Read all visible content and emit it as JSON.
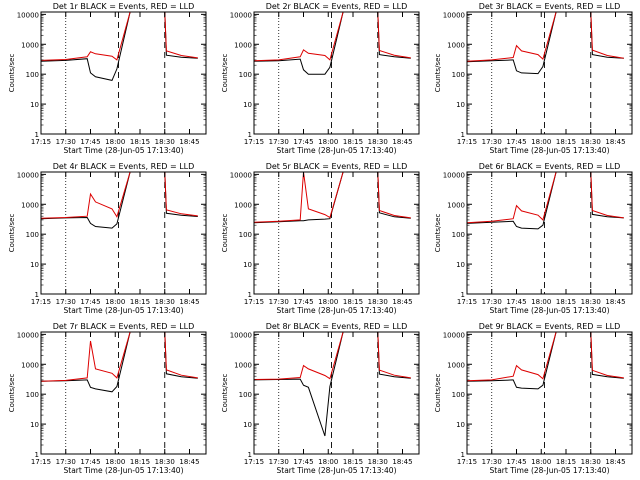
{
  "chart_data": [
    {
      "type": "line",
      "title": "Det 1r BLACK = Events, RED = LLD",
      "xlabel": "",
      "ylabel": "Counts/sec",
      "x": [
        "17:15",
        "17:30",
        "17:43",
        "17:45",
        "17:48",
        "17:58",
        "18:01",
        "18:09",
        "18:30",
        "18:31",
        "18:40",
        "18:50"
      ],
      "series": [
        {
          "color": "#000000",
          "values": [
            270,
            290,
            330,
            110,
            82,
            62,
            150,
            12000,
            12000,
            430,
            370,
            340
          ]
        },
        {
          "color": "#dd0000",
          "values": [
            290,
            310,
            380,
            560,
            480,
            400,
            300,
            12000,
            12000,
            600,
            420,
            350
          ]
        }
      ]
    },
    {
      "type": "line",
      "title": "Det 2r BLACK = Events, RED = LLD",
      "xlabel": "",
      "ylabel": "Counts/sec",
      "x": [
        "17:15",
        "17:30",
        "17:43",
        "17:45",
        "17:48",
        "17:58",
        "18:01",
        "18:09",
        "18:30",
        "18:31",
        "18:40",
        "18:50"
      ],
      "series": [
        {
          "color": "#000000",
          "values": [
            270,
            280,
            320,
            140,
            100,
            100,
            170,
            12000,
            12000,
            450,
            380,
            340
          ]
        },
        {
          "color": "#dd0000",
          "values": [
            280,
            300,
            380,
            650,
            500,
            420,
            300,
            12000,
            12000,
            620,
            430,
            350
          ]
        }
      ]
    },
    {
      "type": "line",
      "title": "Det 3r BLACK = Events, RED = LLD",
      "xlabel": "",
      "ylabel": "Counts/sec",
      "x": [
        "17:15",
        "17:30",
        "17:43",
        "17:45",
        "17:48",
        "17:58",
        "18:01",
        "18:09",
        "18:30",
        "18:31",
        "18:40",
        "18:50"
      ],
      "series": [
        {
          "color": "#000000",
          "values": [
            260,
            280,
            300,
            130,
            110,
            105,
            180,
            12000,
            12000,
            450,
            370,
            340
          ]
        },
        {
          "color": "#dd0000",
          "values": [
            270,
            300,
            360,
            900,
            600,
            450,
            320,
            12000,
            12000,
            640,
            420,
            340
          ]
        }
      ]
    },
    {
      "type": "line",
      "title": "Det 4r BLACK = Events, RED = LLD",
      "xlabel": "",
      "ylabel": "Counts/sec",
      "x": [
        "17:15",
        "17:30",
        "17:43",
        "17:45",
        "17:48",
        "17:58",
        "18:01",
        "18:09",
        "18:30",
        "18:31",
        "18:40",
        "18:50"
      ],
      "series": [
        {
          "color": "#000000",
          "values": [
            330,
            350,
            360,
            230,
            180,
            160,
            220,
            12000,
            12000,
            500,
            430,
            390
          ]
        },
        {
          "color": "#dd0000",
          "values": [
            340,
            360,
            400,
            2200,
            1200,
            700,
            380,
            12000,
            12000,
            650,
            480,
            410
          ]
        }
      ]
    },
    {
      "type": "line",
      "title": "Det 5r BLACK = Events, RED = LLD",
      "xlabel": "",
      "ylabel": "Counts/sec",
      "x": [
        "17:15",
        "17:30",
        "17:43",
        "17:45",
        "17:48",
        "17:58",
        "18:01",
        "18:09",
        "18:30",
        "18:31",
        "18:40",
        "18:50"
      ],
      "series": [
        {
          "color": "#000000",
          "values": [
            240,
            260,
            280,
            280,
            300,
            320,
            330,
            12000,
            12000,
            520,
            380,
            340
          ]
        },
        {
          "color": "#dd0000",
          "values": [
            250,
            270,
            300,
            12000,
            700,
            450,
            360,
            12000,
            12000,
            620,
            420,
            350
          ]
        }
      ]
    },
    {
      "type": "line",
      "title": "Det 6r BLACK = Events, RED = LLD",
      "xlabel": "",
      "ylabel": "Counts/sec",
      "x": [
        "17:15",
        "17:30",
        "17:43",
        "17:45",
        "17:48",
        "17:58",
        "18:01",
        "18:09",
        "18:30",
        "18:31",
        "18:40",
        "18:50"
      ],
      "series": [
        {
          "color": "#000000",
          "values": [
            230,
            250,
            270,
            180,
            160,
            150,
            200,
            12000,
            12000,
            460,
            380,
            350
          ]
        },
        {
          "color": "#dd0000",
          "values": [
            240,
            270,
            330,
            900,
            600,
            430,
            300,
            12000,
            12000,
            620,
            420,
            350
          ]
        }
      ]
    },
    {
      "type": "line",
      "title": "Det 7r BLACK = Events, RED = LLD",
      "xlabel": "",
      "ylabel": "Counts/sec",
      "x": [
        "17:15",
        "17:30",
        "17:43",
        "17:45",
        "17:48",
        "17:58",
        "18:01",
        "18:09",
        "18:30",
        "18:31",
        "18:40",
        "18:50"
      ],
      "series": [
        {
          "color": "#000000",
          "values": [
            270,
            280,
            300,
            170,
            150,
            120,
            180,
            12000,
            12000,
            480,
            380,
            340
          ]
        },
        {
          "color": "#dd0000",
          "values": [
            270,
            290,
            350,
            6000,
            700,
            500,
            350,
            12000,
            12000,
            650,
            430,
            350
          ]
        }
      ]
    },
    {
      "type": "line",
      "title": "Det 8r BLACK = Events, RED = LLD",
      "xlabel": "",
      "ylabel": "Counts/sec",
      "x": [
        "17:15",
        "17:30",
        "17:43",
        "17:45",
        "17:48",
        "17:58",
        "18:01",
        "18:09",
        "18:30",
        "18:31",
        "18:40",
        "18:50"
      ],
      "series": [
        {
          "color": "#000000",
          "values": [
            300,
            310,
            320,
            200,
            170,
            4,
            180,
            12000,
            12000,
            470,
            380,
            340
          ]
        },
        {
          "color": "#dd0000",
          "values": [
            310,
            320,
            360,
            900,
            700,
            420,
            330,
            12000,
            12000,
            640,
            430,
            350
          ]
        }
      ]
    },
    {
      "type": "line",
      "title": "Det 9r BLACK = Events, RED = LLD",
      "xlabel": "",
      "ylabel": "Counts/sec",
      "x": [
        "17:15",
        "17:30",
        "17:43",
        "17:45",
        "17:48",
        "17:58",
        "18:01",
        "18:09",
        "18:30",
        "18:31",
        "18:40",
        "18:50"
      ],
      "series": [
        {
          "color": "#000000",
          "values": [
            270,
            280,
            300,
            170,
            160,
            150,
            200,
            12000,
            12000,
            460,
            380,
            340
          ]
        },
        {
          "color": "#dd0000",
          "values": [
            280,
            300,
            400,
            900,
            650,
            450,
            330,
            12000,
            12000,
            630,
            420,
            350
          ]
        }
      ]
    }
  ],
  "axes": {
    "x_tick_labels": [
      "17:15",
      "17:30",
      "17:45",
      "18:00",
      "18:15",
      "18:30",
      "18:45"
    ],
    "xlim": [
      "17:15",
      "18:55"
    ],
    "ylim": [
      1,
      12000
    ],
    "y_scale": "log",
    "y_tick_labels": [
      "1",
      "10",
      "100",
      "1000",
      "10000"
    ],
    "xlabel_common": "Start Time (28-Jun-05 17:13:40)",
    "dotted_marker_time": "17:30",
    "dashed_marker_times": [
      "18:02",
      "18:30"
    ]
  }
}
